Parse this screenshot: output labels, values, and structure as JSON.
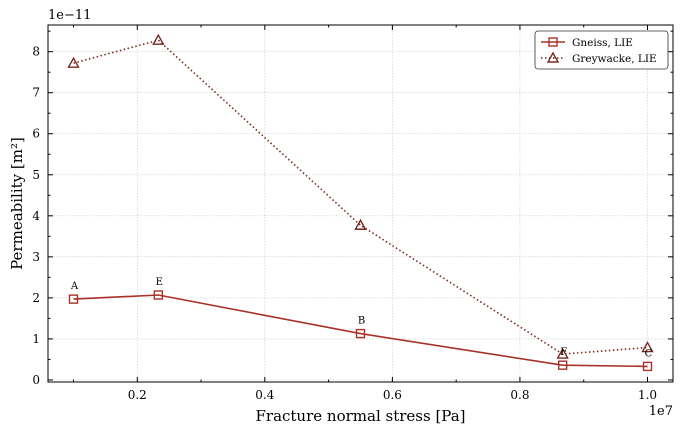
{
  "chart_data": {
    "type": "line",
    "xlabel": "Fracture normal stress [Pa]",
    "ylabel": "Permeability [m²]",
    "x_offset_label": "1e7",
    "y_offset_label": "1e−11",
    "xlim": [
      0.06,
      1.04
    ],
    "ylim": [
      -0.05,
      8.65
    ],
    "x_ticks": [
      0.2,
      0.4,
      0.6,
      0.8,
      1.0
    ],
    "x_tick_labels": [
      "0.2",
      "0.4",
      "0.6",
      "0.8",
      "1.0"
    ],
    "y_ticks": [
      0,
      1,
      2,
      3,
      4,
      5,
      6,
      7,
      8
    ],
    "y_tick_labels": [
      "0",
      "1",
      "2",
      "3",
      "4",
      "5",
      "6",
      "7",
      "8"
    ],
    "grid": true,
    "legend_position": "top-right",
    "series": [
      {
        "name": "Gneiss, LIE",
        "marker": "square",
        "linestyle": "solid",
        "color": "#a83228",
        "x": [
          0.1,
          0.233,
          0.55,
          0.867,
          1.0
        ],
        "y": [
          1.97,
          2.07,
          1.13,
          0.36,
          0.33
        ]
      },
      {
        "name": "Greywacke, LIE",
        "marker": "triangle",
        "linestyle": "dotted",
        "color": "#7a2a1e",
        "x": [
          0.1,
          0.233,
          0.55,
          0.867,
          1.0
        ],
        "y": [
          7.72,
          8.28,
          3.77,
          0.63,
          0.79
        ]
      }
    ],
    "annotations": [
      {
        "text": "A",
        "x": 0.1,
        "y": 1.97
      },
      {
        "text": "E",
        "x": 0.233,
        "y": 2.07
      },
      {
        "text": "B",
        "x": 0.55,
        "y": 1.13
      },
      {
        "text": "F",
        "x": 0.867,
        "y": 0.36
      },
      {
        "text": "C",
        "x": 1.0,
        "y": 0.33
      }
    ]
  }
}
